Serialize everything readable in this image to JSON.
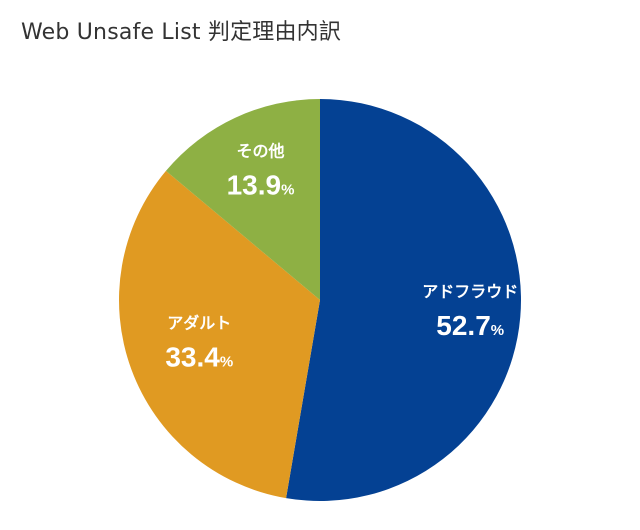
{
  "chart_data": {
    "type": "pie",
    "title": "Web Unsafe List 判定理由内訳",
    "unit": "%",
    "slices": [
      {
        "label": "アドフラウド",
        "value": 52.7,
        "value_text": "52.7",
        "color": "#044193"
      },
      {
        "label": "アダルト",
        "value": 33.4,
        "value_text": "33.4",
        "color": "#E09A22"
      },
      {
        "label": "その他",
        "value": 13.9,
        "value_text": "13.9",
        "color": "#8EB044"
      }
    ],
    "start_angle": "12 o'clock",
    "direction": "clockwise"
  }
}
